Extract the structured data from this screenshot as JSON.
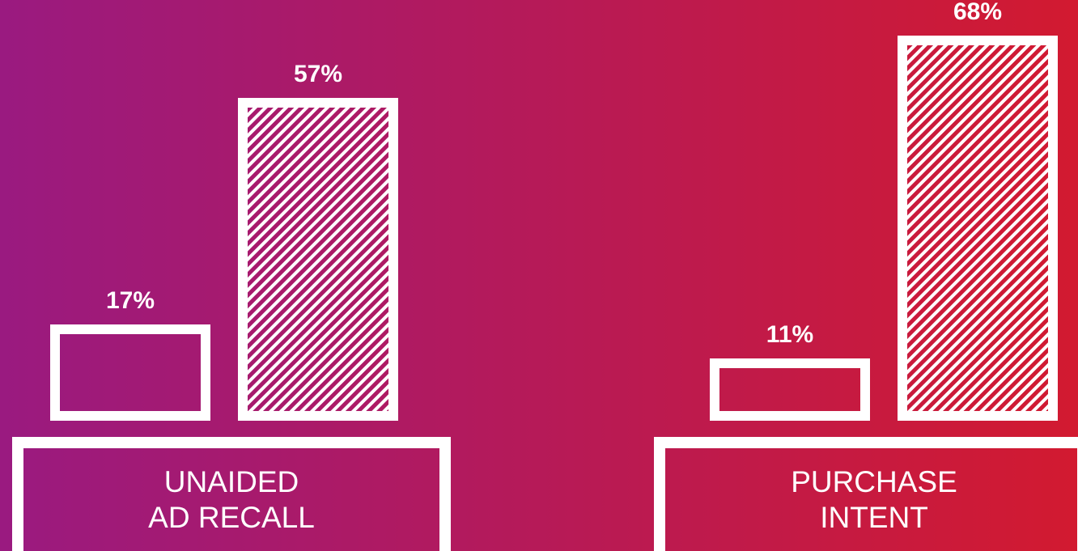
{
  "chart_data": {
    "type": "bar",
    "categories": [
      [
        "UNAIDED",
        "AD RECALL"
      ],
      [
        "PURCHASE",
        "INTENT"
      ]
    ],
    "series": [
      {
        "color": "#ffffff",
        "values": [
          17,
          11
        ],
        "value_labels": [
          "17%",
          "11%"
        ]
      },
      {
        "color": "#ffffff",
        "hatch": true,
        "values": [
          57,
          68
        ],
        "value_labels": [
          "57%",
          "68%"
        ]
      }
    ]
  }
}
